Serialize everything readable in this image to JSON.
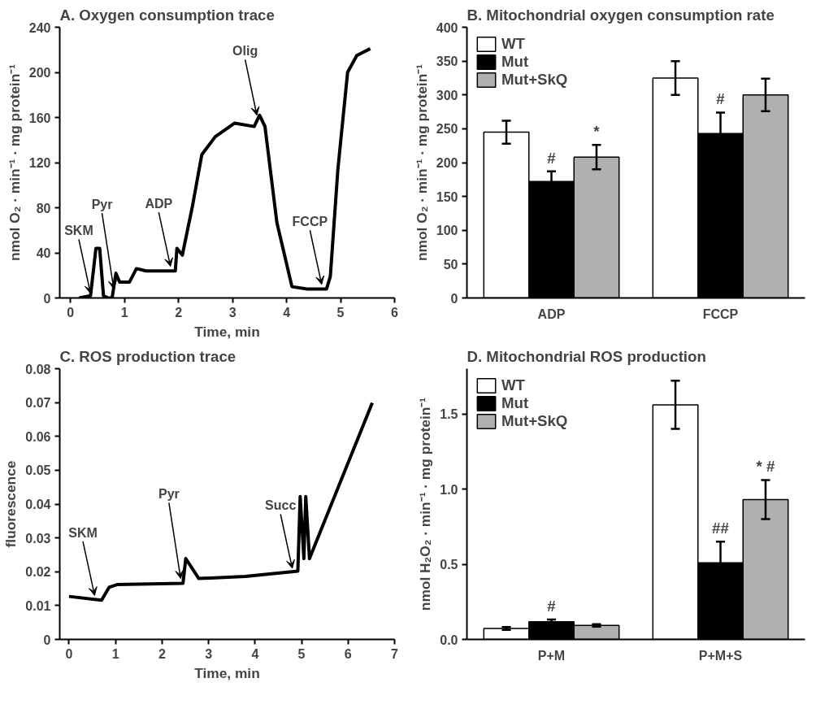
{
  "chart_data": [
    {
      "type": "line",
      "title": "A. Oxygen consumption trace",
      "xlabel": "Time, min",
      "ylabel": "nmol O₂ · min⁻¹ · mg protein⁻¹",
      "xlim": [
        -0.2,
        6
      ],
      "ylim": [
        0,
        240
      ],
      "xticks": [
        0,
        1,
        2,
        3,
        4,
        5,
        6
      ],
      "yticks": [
        0,
        40,
        80,
        120,
        160,
        200,
        240
      ],
      "grid": false,
      "marker": "none",
      "line_style": "solid",
      "x": [
        0.16,
        0.37,
        0.47,
        0.54,
        0.61,
        0.7,
        0.77,
        0.84,
        0.91,
        1.09,
        1.22,
        1.4,
        1.83,
        1.94,
        1.97,
        2.07,
        2.26,
        2.43,
        2.68,
        3.04,
        3.4,
        3.5,
        3.6,
        3.82,
        4.1,
        4.38,
        4.74,
        4.81,
        4.95,
        5.13,
        5.3,
        5.55
      ],
      "series": [
        {
          "color": "#000000",
          "values": [
            0,
            2,
            44,
            44,
            2,
            0,
            0,
            22,
            14,
            14,
            26,
            24,
            24,
            24,
            44,
            38,
            82,
            127,
            143,
            155,
            152,
            162,
            152,
            67,
            10,
            8,
            8,
            19,
            114,
            200,
            215,
            221
          ]
        }
      ],
      "annotations": [
        {
          "text": "SKM",
          "x": 0.37,
          "y": 4
        },
        {
          "text": "Pyr",
          "x": 0.8,
          "y": 8
        },
        {
          "text": "ADP",
          "x": 1.85,
          "y": 28
        },
        {
          "text": "Olig",
          "x": 3.45,
          "y": 162
        },
        {
          "text": "FCCP",
          "x": 4.65,
          "y": 12
        }
      ]
    },
    {
      "type": "bar",
      "title": "B. Mitochondrial oxygen consumption rate",
      "ylabel": "nmol O₂ · min⁻¹ · mg protein⁻¹",
      "categories": [
        "ADP",
        "FCCP"
      ],
      "ylim": [
        0,
        400
      ],
      "yticks": [
        0,
        50,
        100,
        150,
        200,
        250,
        300,
        350,
        400
      ],
      "grid": false,
      "legend": "top left",
      "series": [
        {
          "name": "WT",
          "color": "#ffffff",
          "values": [
            245,
            325
          ],
          "errors": [
            17,
            25
          ]
        },
        {
          "name": "Mut",
          "color": "#000000",
          "values": [
            172,
            243
          ],
          "errors": [
            15,
            31
          ],
          "value_labels": [
            "#",
            "#"
          ]
        },
        {
          "name": "Mut+SkQ",
          "color": "#b0b0b0",
          "values": [
            208,
            300
          ],
          "errors": [
            18,
            24
          ],
          "value_labels": [
            "*",
            null
          ]
        }
      ]
    },
    {
      "type": "line",
      "title": "C. ROS production trace",
      "xlabel": "Time, min",
      "ylabel": "fluorescence",
      "xlim": [
        -0.2,
        7
      ],
      "ylim": [
        0,
        0.08
      ],
      "xticks": [
        0,
        1,
        2,
        3,
        4,
        5,
        6,
        7
      ],
      "yticks": [
        0,
        0.01,
        0.02,
        0.03,
        0.04,
        0.05,
        0.06,
        0.07,
        0.08
      ],
      "grid": false,
      "marker": "none",
      "line_style": "solid",
      "x": [
        0,
        0.7,
        0.86,
        1.03,
        2.45,
        2.51,
        2.79,
        3.79,
        4.92,
        4.97,
        5.05,
        5.09,
        5.17,
        6.52
      ],
      "series": [
        {
          "color": "#000000",
          "values": [
            0.0127,
            0.0116,
            0.0154,
            0.0162,
            0.0166,
            0.0239,
            0.018,
            0.0186,
            0.0202,
            0.0422,
            0.0239,
            0.0422,
            0.0239,
            0.0699
          ]
        }
      ],
      "annotations": [
        {
          "text": "SKM",
          "x": 0.55,
          "y": 0.013
        },
        {
          "text": "Pyr",
          "x": 2.4,
          "y": 0.018
        },
        {
          "text": "Succ",
          "x": 4.8,
          "y": 0.021
        }
      ]
    },
    {
      "type": "bar",
      "title": "D. Mitochondrial ROS production",
      "ylabel": "nmol H₂O₂ · min⁻¹ · mg protein⁻¹",
      "categories": [
        "P+M",
        "P+M+S"
      ],
      "ylim": [
        0,
        1.8
      ],
      "yticks": [
        {
          "value": 0,
          "label": "0.0"
        },
        0.5,
        {
          "value": 1,
          "label": "1.0"
        },
        1.5
      ],
      "grid": false,
      "legend": "top left",
      "series": [
        {
          "name": "WT",
          "color": "#ffffff",
          "values": [
            0.073,
            1.56
          ],
          "errors": [
            0.01,
            0.16
          ]
        },
        {
          "name": "Mut",
          "color": "#000000",
          "values": [
            0.117,
            0.51
          ],
          "errors": [
            0.015,
            0.14
          ],
          "value_labels": [
            "#",
            "##"
          ]
        },
        {
          "name": "Mut+SkQ",
          "color": "#b0b0b0",
          "values": [
            0.093,
            0.93
          ],
          "errors": [
            0.008,
            0.13
          ],
          "value_labels": [
            null,
            "* #"
          ]
        }
      ]
    }
  ]
}
